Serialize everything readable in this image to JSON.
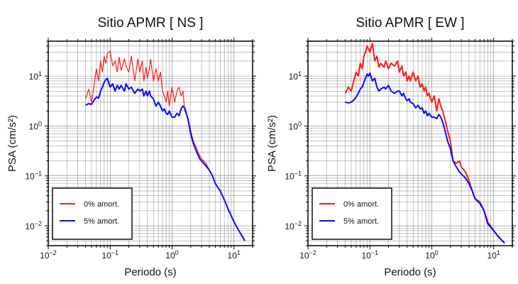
{
  "chart_data": [
    {
      "type": "line",
      "title": "Sitio APMR [ NS ]",
      "xlabel": "Periodo (s)",
      "ylabel": "PSA (cm/s²)",
      "xscale": "log",
      "yscale": "log",
      "xlim": [
        0.01,
        20
      ],
      "ylim": [
        0.004,
        50
      ],
      "xticks": [
        0.01,
        0.1,
        1,
        10
      ],
      "yticks": [
        0.01,
        0.1,
        1,
        10
      ],
      "grid": true,
      "legend": {
        "position": "bottom-left"
      },
      "series": [
        {
          "name": "0% amort.",
          "color": "#ff1a1a",
          "width": 1.2,
          "x": [
            0.04,
            0.045,
            0.05,
            0.055,
            0.06,
            0.065,
            0.07,
            0.075,
            0.08,
            0.085,
            0.09,
            0.1,
            0.11,
            0.12,
            0.13,
            0.14,
            0.15,
            0.17,
            0.18,
            0.2,
            0.22,
            0.25,
            0.28,
            0.3,
            0.33,
            0.35,
            0.38,
            0.4,
            0.43,
            0.45,
            0.5,
            0.55,
            0.6,
            0.65,
            0.7,
            0.75,
            0.8,
            0.85,
            0.9,
            1.0,
            1.1,
            1.2,
            1.3,
            1.4,
            1.5,
            1.6,
            1.8,
            2.0,
            2.2,
            2.5,
            2.8,
            3.0,
            3.5,
            4.0,
            4.5,
            5.0,
            6.0,
            7.0,
            8.0,
            10.0,
            12.0,
            15.0
          ],
          "y": [
            3.5,
            5.5,
            3.0,
            6.5,
            14.0,
            8.0,
            20.0,
            12.0,
            25.0,
            18.0,
            28.0,
            32.0,
            16.0,
            20.0,
            12.0,
            24.0,
            13.0,
            22.0,
            16.0,
            12.0,
            25.0,
            8.0,
            22.0,
            12.0,
            20.0,
            8.0,
            15.0,
            9.0,
            14.0,
            22.0,
            8.0,
            14.0,
            8.0,
            12.0,
            5.0,
            4.0,
            3.0,
            5.0,
            2.5,
            6.0,
            3.0,
            5.0,
            6.0,
            4.0,
            5.0,
            2.0,
            1.5,
            0.8,
            0.5,
            0.35,
            0.25,
            0.22,
            0.18,
            0.13,
            0.1,
            0.07,
            0.05,
            0.033,
            0.022,
            0.012,
            0.008,
            0.005
          ]
        },
        {
          "name": "5% amort.",
          "color": "#0a0aff",
          "width": 2,
          "x": [
            0.04,
            0.045,
            0.05,
            0.055,
            0.06,
            0.065,
            0.07,
            0.075,
            0.08,
            0.085,
            0.09,
            0.1,
            0.11,
            0.12,
            0.13,
            0.14,
            0.15,
            0.17,
            0.18,
            0.2,
            0.22,
            0.25,
            0.28,
            0.3,
            0.33,
            0.35,
            0.38,
            0.4,
            0.43,
            0.45,
            0.5,
            0.55,
            0.6,
            0.65,
            0.7,
            0.75,
            0.8,
            0.85,
            0.9,
            1.0,
            1.1,
            1.2,
            1.3,
            1.4,
            1.5,
            1.6,
            1.8,
            2.0,
            2.2,
            2.5,
            2.8,
            3.0,
            3.5,
            4.0,
            4.5,
            5.0,
            6.0,
            7.0,
            8.0,
            10.0,
            12.0,
            15.0
          ],
          "y": [
            2.6,
            2.8,
            2.7,
            3.3,
            3.8,
            3.6,
            5.0,
            6.0,
            7.5,
            8.5,
            9.0,
            6.0,
            7.0,
            5.0,
            6.5,
            5.5,
            6.5,
            5.0,
            7.0,
            5.5,
            6.0,
            4.5,
            5.5,
            5.0,
            5.5,
            4.0,
            5.0,
            4.0,
            5.0,
            4.0,
            3.5,
            2.5,
            3.0,
            2.5,
            2.0,
            2.2,
            1.8,
            1.7,
            2.0,
            1.5,
            1.5,
            1.8,
            1.6,
            2.2,
            2.5,
            2.3,
            1.4,
            0.7,
            0.45,
            0.3,
            0.22,
            0.2,
            0.16,
            0.13,
            0.1,
            0.07,
            0.05,
            0.033,
            0.022,
            0.012,
            0.008,
            0.005
          ]
        }
      ]
    },
    {
      "type": "line",
      "title": "Sitio APMR [ EW ]",
      "xlabel": "Periodo (s)",
      "ylabel": "PSA (cm/s²)",
      "xscale": "log",
      "yscale": "log",
      "xlim": [
        0.01,
        20
      ],
      "ylim": [
        0.004,
        50
      ],
      "xticks": [
        0.01,
        0.1,
        1,
        10
      ],
      "yticks": [
        0.01,
        0.1,
        1,
        10
      ],
      "grid": true,
      "legend": {
        "position": "bottom-left"
      },
      "series": [
        {
          "name": "0% amort.",
          "color": "#ff1a1a",
          "width": 2,
          "x": [
            0.04,
            0.045,
            0.05,
            0.055,
            0.06,
            0.065,
            0.07,
            0.075,
            0.08,
            0.085,
            0.09,
            0.095,
            0.1,
            0.11,
            0.12,
            0.13,
            0.14,
            0.15,
            0.17,
            0.18,
            0.2,
            0.22,
            0.25,
            0.28,
            0.3,
            0.33,
            0.35,
            0.38,
            0.4,
            0.43,
            0.45,
            0.5,
            0.55,
            0.6,
            0.65,
            0.7,
            0.75,
            0.8,
            0.85,
            0.9,
            1.0,
            1.1,
            1.2,
            1.3,
            1.4,
            1.5,
            1.6,
            1.8,
            2.0,
            2.2,
            2.5,
            2.8,
            3.0,
            3.5,
            4.0,
            4.5,
            5.0,
            6.0,
            7.0,
            8.0,
            10.0,
            12.0,
            15.0
          ],
          "y": [
            4.5,
            6.0,
            5.0,
            8.0,
            12.0,
            10.0,
            18.0,
            14.0,
            25.0,
            30.0,
            40.0,
            35.0,
            30.0,
            45.0,
            20.0,
            25.0,
            15.0,
            18.0,
            15.0,
            20.0,
            14.0,
            18.0,
            16.0,
            20.0,
            12.0,
            16.0,
            10.0,
            12.0,
            8.0,
            10.0,
            8.0,
            12.0,
            8.0,
            10.0,
            6.0,
            7.0,
            5.0,
            6.0,
            4.0,
            4.5,
            3.0,
            4.0,
            2.0,
            3.5,
            2.5,
            2.0,
            1.5,
            0.8,
            0.5,
            0.2,
            0.18,
            0.2,
            0.15,
            0.12,
            0.08,
            0.05,
            0.035,
            0.03,
            0.02,
            0.012,
            0.008,
            0.006,
            0.0045
          ]
        },
        {
          "name": "5% amort.",
          "color": "#0a0aff",
          "width": 2,
          "x": [
            0.04,
            0.045,
            0.05,
            0.055,
            0.06,
            0.065,
            0.07,
            0.075,
            0.08,
            0.085,
            0.09,
            0.095,
            0.1,
            0.11,
            0.12,
            0.13,
            0.14,
            0.15,
            0.17,
            0.18,
            0.2,
            0.22,
            0.25,
            0.28,
            0.3,
            0.33,
            0.35,
            0.38,
            0.4,
            0.43,
            0.45,
            0.5,
            0.55,
            0.6,
            0.65,
            0.7,
            0.75,
            0.8,
            0.85,
            0.9,
            1.0,
            1.1,
            1.2,
            1.3,
            1.4,
            1.5,
            1.6,
            1.8,
            2.0,
            2.2,
            2.5,
            2.8,
            3.0,
            3.5,
            4.0,
            4.5,
            5.0,
            6.0,
            7.0,
            8.0,
            10.0,
            12.0,
            15.0
          ],
          "y": [
            3.0,
            2.9,
            3.0,
            3.3,
            3.8,
            4.5,
            5.5,
            6.0,
            7.5,
            9.0,
            11.0,
            10.0,
            11.5,
            8.0,
            9.0,
            6.0,
            5.0,
            5.5,
            6.0,
            5.5,
            6.5,
            5.0,
            4.5,
            5.0,
            5.0,
            4.0,
            4.5,
            3.5,
            3.2,
            3.5,
            3.0,
            2.8,
            2.3,
            2.6,
            2.2,
            2.3,
            1.8,
            2.0,
            1.6,
            1.8,
            1.5,
            1.5,
            1.4,
            1.7,
            1.5,
            1.2,
            0.9,
            0.5,
            0.35,
            0.2,
            0.15,
            0.12,
            0.11,
            0.09,
            0.07,
            0.05,
            0.035,
            0.028,
            0.02,
            0.011,
            0.008,
            0.006,
            0.0045
          ]
        }
      ]
    }
  ]
}
